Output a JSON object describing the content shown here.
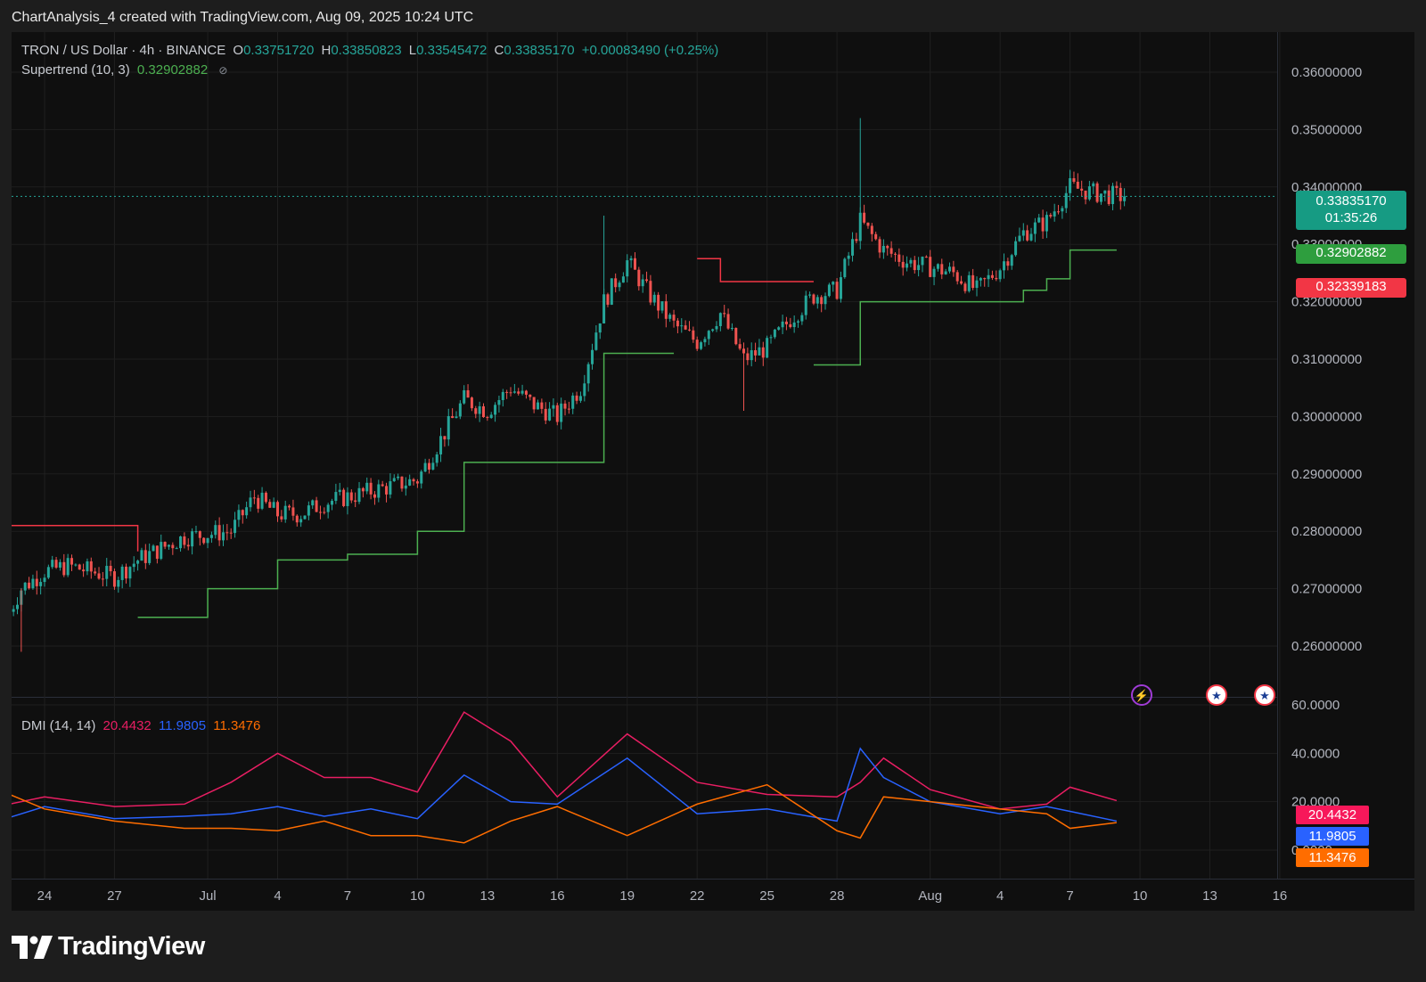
{
  "header": {
    "text": "ChartAnalysis_4 created with TradingView.com, Aug 09, 2025 10:24 UTC"
  },
  "legend": {
    "symbol": "TRON / US Dollar · 4h · BINANCE",
    "o_label": "O",
    "o_value": "0.33751720",
    "h_label": "H",
    "h_value": "0.33850823",
    "l_label": "L",
    "l_value": "0.33545472",
    "c_label": "C",
    "c_value": "0.33835170",
    "change": "+0.00083490 (+0.25%)",
    "supertrend_label": "Supertrend (10, 3)",
    "supertrend_value": "0.32902882",
    "dmi_label": "DMI (14, 14)",
    "dmi_adx": "20.4432",
    "dmi_plus": "11.9805",
    "dmi_minus": "11.3476"
  },
  "tags": {
    "current_price": "0.33835170",
    "countdown": "01:35:26",
    "supertrend": "0.32902882",
    "red_level": "0.32339183",
    "dmi_adx": "20.4432",
    "dmi_plus": "11.9805",
    "dmi_minus": "11.3476"
  },
  "price_axis": [
    "0.36000000",
    "0.35000000",
    "0.34000000",
    "0.33000000",
    "0.32000000",
    "0.31000000",
    "0.30000000",
    "0.29000000",
    "0.28000000",
    "0.27000000",
    "0.26000000"
  ],
  "dmi_axis": [
    "60.0000",
    "40.0000",
    "20.0000",
    "0.0000"
  ],
  "time_axis": [
    "24",
    "27",
    "Jul",
    "4",
    "7",
    "10",
    "13",
    "16",
    "19",
    "22",
    "25",
    "28",
    "Aug",
    "4",
    "7",
    "10",
    "13",
    "16"
  ],
  "events": {
    "bolt": "bolt-icon",
    "us_flag": "us-flag-icon"
  },
  "logo": {
    "text": "TradingView"
  },
  "colors": {
    "up": "#26a69a",
    "down": "#ef5350",
    "supertrend_up": "#4caf50",
    "supertrend_down": "#f23645",
    "adx": "#e91e63",
    "di_plus": "#2962ff",
    "di_minus": "#ff6d00",
    "background": "#0f0f0f",
    "grid": "#1f1f1f"
  },
  "chart_data": [
    {
      "type": "candlestick",
      "title": "TRON / US Dollar · 4h · BINANCE",
      "interval": "4h",
      "ylim": [
        0.255,
        0.364
      ],
      "x_range": [
        "Jun 23",
        "Aug 16"
      ],
      "last": {
        "open": 0.3375172,
        "high": 0.33850823,
        "low": 0.33545472,
        "close": 0.3383517
      },
      "path_anchors": {
        "dates": [
          "Jun 22",
          "Jun 23",
          "Jun 24",
          "Jun 25",
          "Jun 27",
          "Jun 28",
          "Jun 30",
          "Jul 2",
          "Jul 3",
          "Jul 4",
          "Jul 5",
          "Jul 6",
          "Jul 8",
          "Jul 10",
          "Jul 11",
          "Jul 12",
          "Jul 13",
          "Jul 14",
          "Jul 15",
          "Jul 16",
          "Jul 17",
          "Jul 18",
          "Jul 19",
          "Jul 20",
          "Jul 21",
          "Jul 22",
          "Jul 23",
          "Jul 24",
          "Jul 25",
          "Jul 26",
          "Jul 27",
          "Jul 28",
          "Jul 29",
          "Jul 30",
          "Jul 31",
          "Aug 1",
          "Aug 2",
          "Aug 3",
          "Aug 4",
          "Aug 5",
          "Aug 6",
          "Aug 7",
          "Aug 8",
          "Aug 9"
        ],
        "close": [
          0.262,
          0.27,
          0.273,
          0.274,
          0.272,
          0.275,
          0.279,
          0.28,
          0.286,
          0.283,
          0.283,
          0.285,
          0.287,
          0.289,
          0.296,
          0.303,
          0.301,
          0.305,
          0.302,
          0.3,
          0.305,
          0.32,
          0.327,
          0.321,
          0.316,
          0.313,
          0.318,
          0.31,
          0.312,
          0.317,
          0.321,
          0.322,
          0.334,
          0.329,
          0.327,
          0.326,
          0.325,
          0.322,
          0.326,
          0.332,
          0.334,
          0.34,
          0.339,
          0.3384
        ]
      },
      "notable_highs": [
        {
          "date": "Jul 18",
          "high": 0.335
        },
        {
          "date": "Jul 29",
          "high": 0.352
        },
        {
          "date": "Aug 7",
          "high": 0.343
        }
      ],
      "notable_lows": [
        {
          "date": "Jun 23",
          "low": 0.259
        },
        {
          "date": "Jul 24",
          "low": 0.301
        }
      ],
      "supertrend": {
        "name": "Supertrend (10, 3)",
        "last": 0.32902882,
        "segments": [
          {
            "trend": "down",
            "dates": [
              "Jun 22",
              "Jun 28"
            ],
            "values": [
              0.281,
              0.2765
            ]
          },
          {
            "trend": "up",
            "dates": [
              "Jun 28",
              "Jul 1",
              "Jul 4",
              "Jul 7",
              "Jul 10",
              "Jul 12",
              "Jul 16",
              "Jul 18",
              "Jul 21"
            ],
            "values": [
              0.265,
              0.27,
              0.275,
              0.276,
              0.28,
              0.292,
              0.292,
              0.311,
              0.311
            ]
          },
          {
            "trend": "down",
            "dates": [
              "Jul 22",
              "Jul 23",
              "Jul 27"
            ],
            "values": [
              0.3275,
              0.3235,
              0.3235
            ]
          },
          {
            "trend": "up",
            "dates": [
              "Jul 27",
              "Jul 29",
              "Aug 3",
              "Aug 5",
              "Aug 6",
              "Aug 7",
              "Aug 9"
            ],
            "values": [
              0.309,
              0.32,
              0.32,
              0.322,
              0.324,
              0.329,
              0.329
            ]
          }
        ]
      }
    },
    {
      "type": "line",
      "title": "DMI (14, 14)",
      "ylim": [
        0,
        60
      ],
      "x": [
        "Jun 22",
        "Jun 24",
        "Jun 27",
        "Jun 30",
        "Jul 2",
        "Jul 4",
        "Jul 6",
        "Jul 8",
        "Jul 10",
        "Jul 12",
        "Jul 14",
        "Jul 16",
        "Jul 19",
        "Jul 22",
        "Jul 25",
        "Jul 28",
        "Jul 29",
        "Jul 30",
        "Aug 1",
        "Aug 4",
        "Aug 6",
        "Aug 7",
        "Aug 9"
      ],
      "series": [
        {
          "name": "20.4432",
          "values": [
            18,
            22,
            18,
            19,
            28,
            40,
            30,
            30,
            24,
            57,
            45,
            22,
            48,
            28,
            23,
            22,
            28,
            38,
            25,
            17,
            19,
            26,
            20.4432
          ]
        },
        {
          "name": "11.9805",
          "values": [
            12,
            18,
            13,
            14,
            15,
            18,
            14,
            17,
            13,
            31,
            20,
            19,
            38,
            15,
            17,
            12,
            42,
            30,
            20,
            15,
            18,
            16,
            11.9805
          ]
        },
        {
          "name": "11.3476",
          "values": [
            25,
            17,
            12,
            9,
            9,
            8,
            12,
            6,
            6,
            3,
            12,
            18,
            6,
            19,
            27,
            8,
            5,
            22,
            20,
            17,
            15,
            9,
            11.3476
          ]
        }
      ]
    }
  ]
}
